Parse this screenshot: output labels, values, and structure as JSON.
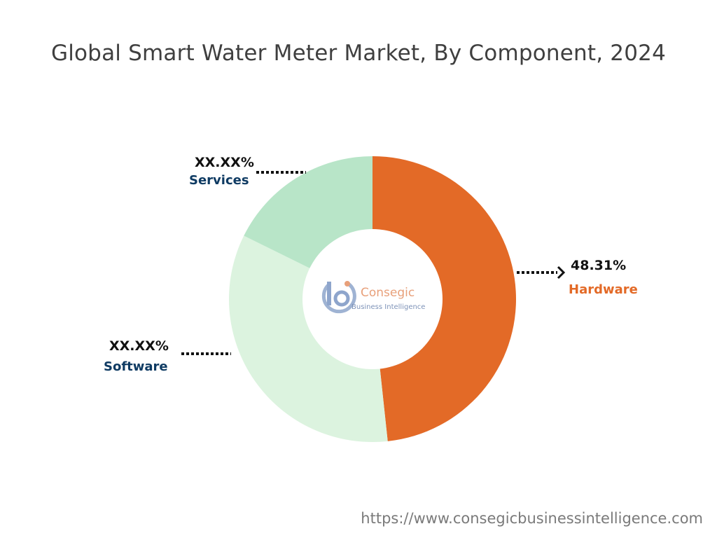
{
  "header": {
    "title": "Global Smart Water Meter Market, By Component, 2024"
  },
  "footer": {
    "url": "https://www.consegicbusinessintelligence.com"
  },
  "logo": {
    "name": "Consegic",
    "tagline": "Business Intelligence"
  },
  "chart_data": {
    "type": "pie",
    "variant": "donut",
    "title": "Global Smart Water Meter Market, By Component, 2024",
    "slices": [
      {
        "name": "Hardware",
        "value": 48.31,
        "label": "48.31%",
        "color": "#e36a27"
      },
      {
        "name": "Software",
        "value": 34.0,
        "label": "XX.XX%",
        "color": "#dcf3df"
      },
      {
        "name": "Services",
        "value": 17.69,
        "label": "XX.XX%",
        "color": "#b8e5c8"
      }
    ],
    "label_colors": {
      "Hardware": "#e36a27",
      "Software": "#0f3b63",
      "Services": "#0f3b63"
    }
  }
}
